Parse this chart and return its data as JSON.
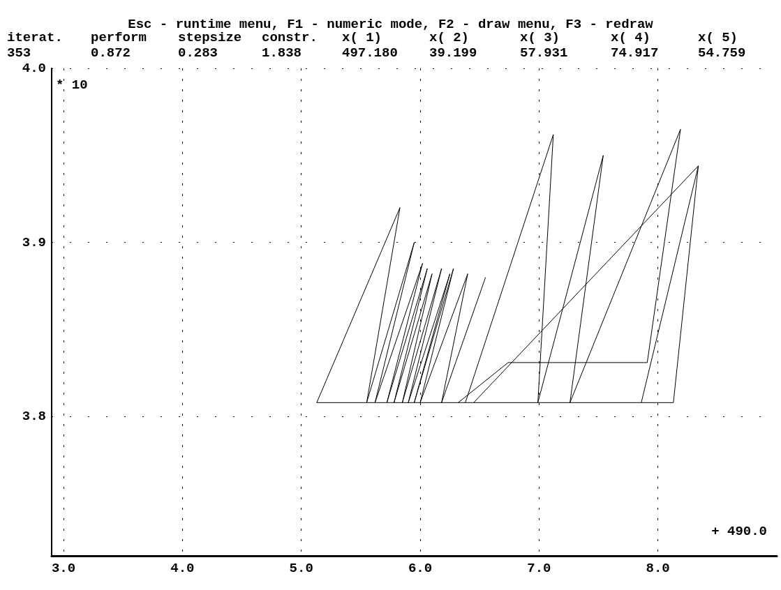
{
  "chart_data": {
    "type": "line",
    "title": "Esc - runtime menu, F1 - numeric mode, F2 - draw menu, F3 - redraw",
    "annotations": [
      "iterat.",
      "perform",
      "stepsize",
      "constr.",
      "x( 1)",
      "x( 2)",
      "x( 3)",
      "x( 4)",
      "x( 5)",
      "353",
      "0.872",
      "0.283",
      "1.838",
      "497.180",
      "39.199",
      "57.931",
      "74.917",
      "54.759",
      "* 10",
      "+ 490.0"
    ],
    "series": [
      {
        "color": "#000000",
        "x": [
          5.13,
          8.13
        ],
        "values": [
          3.808,
          3.808
        ]
      },
      {
        "color": "#000000",
        "x": [
          5.13,
          5.83
        ],
        "values": [
          3.808,
          3.92
        ]
      },
      {
        "color": "#000000",
        "x": [
          5.55,
          5.83
        ],
        "values": [
          3.808,
          3.92
        ]
      },
      {
        "color": "#000000",
        "x": [
          5.55,
          5.95
        ],
        "values": [
          3.808,
          3.9
        ]
      },
      {
        "color": "#000000",
        "x": [
          5.62,
          5.95
        ],
        "values": [
          3.808,
          3.9
        ]
      },
      {
        "color": "#000000",
        "x": [
          5.62,
          6.02
        ],
        "values": [
          3.808,
          3.888
        ]
      },
      {
        "color": "#000000",
        "x": [
          5.72,
          6.02
        ],
        "values": [
          3.808,
          3.888
        ]
      },
      {
        "color": "#000000",
        "x": [
          5.72,
          6.06
        ],
        "values": [
          3.808,
          3.885
        ]
      },
      {
        "color": "#000000",
        "x": [
          5.78,
          6.06
        ],
        "values": [
          3.808,
          3.885
        ]
      },
      {
        "color": "#000000",
        "x": [
          5.78,
          6.1
        ],
        "values": [
          3.808,
          3.882
        ]
      },
      {
        "color": "#000000",
        "x": [
          5.85,
          6.1
        ],
        "values": [
          3.808,
          3.882
        ]
      },
      {
        "color": "#000000",
        "x": [
          5.85,
          6.18
        ],
        "values": [
          3.808,
          3.885
        ]
      },
      {
        "color": "#000000",
        "x": [
          5.9,
          6.18
        ],
        "values": [
          3.808,
          3.885
        ]
      },
      {
        "color": "#000000",
        "x": [
          5.9,
          6.25
        ],
        "values": [
          3.808,
          3.882
        ]
      },
      {
        "color": "#000000",
        "x": [
          5.95,
          6.25
        ],
        "values": [
          3.808,
          3.882
        ]
      },
      {
        "color": "#000000",
        "x": [
          5.95,
          6.28
        ],
        "values": [
          3.808,
          3.885
        ]
      },
      {
        "color": "#000000",
        "x": [
          6.0,
          6.28
        ],
        "values": [
          3.808,
          3.885
        ]
      },
      {
        "color": "#000000",
        "x": [
          6.0,
          6.4
        ],
        "values": [
          3.808,
          3.882
        ]
      },
      {
        "color": "#000000",
        "x": [
          6.18,
          6.4
        ],
        "values": [
          3.808,
          3.882
        ]
      },
      {
        "color": "#000000",
        "x": [
          6.18,
          6.55
        ],
        "values": [
          3.808,
          3.88
        ]
      },
      {
        "color": "#000000",
        "x": [
          6.32,
          6.74,
          7.91,
          8.19
        ],
        "values": [
          3.808,
          3.831,
          3.831,
          3.965
        ]
      },
      {
        "color": "#000000",
        "x": [
          6.38,
          7.12
        ],
        "values": [
          3.808,
          3.962
        ]
      },
      {
        "color": "#000000",
        "x": [
          6.99,
          7.12
        ],
        "values": [
          3.808,
          3.962
        ]
      },
      {
        "color": "#000000",
        "x": [
          6.99,
          7.54
        ],
        "values": [
          3.808,
          3.95
        ]
      },
      {
        "color": "#000000",
        "x": [
          7.26,
          7.54
        ],
        "values": [
          3.808,
          3.95
        ]
      },
      {
        "color": "#000000",
        "x": [
          7.26,
          8.19
        ],
        "values": [
          3.808,
          3.965
        ]
      },
      {
        "color": "#000000",
        "x": [
          8.13,
          8.34
        ],
        "values": [
          3.808,
          3.944
        ]
      },
      {
        "color": "#000000",
        "x": [
          7.86,
          8.34
        ],
        "values": [
          3.808,
          3.944
        ]
      },
      {
        "color": "#000000",
        "x": [
          6.45,
          8.34
        ],
        "values": [
          3.808,
          3.944
        ]
      }
    ],
    "xlim": [
      2.9,
      9.0
    ],
    "xticks": [
      {
        "value": 3,
        "label": "3.0"
      },
      {
        "value": 4,
        "label": "4.0"
      },
      {
        "value": 5,
        "label": "5.0"
      },
      {
        "value": 6,
        "label": "6.0"
      },
      {
        "value": 7,
        "label": "7.0"
      },
      {
        "value": 8,
        "label": "8.0"
      }
    ],
    "ylim": [
      3.72,
      4.0
    ],
    "yticks": [
      {
        "value": 3.8,
        "label": "3.8"
      },
      {
        "value": 3.9,
        "label": "3.9"
      },
      {
        "value": 4.0,
        "label": "4.0"
      }
    ],
    "grid": true,
    "line_style": "solid"
  }
}
